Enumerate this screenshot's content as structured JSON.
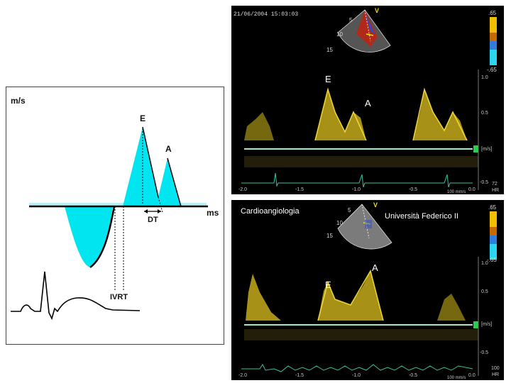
{
  "diagram": {
    "y_unit": "m/s",
    "x_unit": "ms",
    "e_label": "E",
    "a_label": "A",
    "dt_label": "DT",
    "ivrt_label": "IVRT"
  },
  "panel_top": {
    "timestamp": "21/06/2004 15:03:03",
    "e_label": "E",
    "a_label": "A",
    "color_bar": {
      "top": ".65",
      "bottom": "-.65"
    },
    "depth_ticks": [
      "5",
      "10",
      "15"
    ],
    "probe_marker": "V",
    "y_ticks": [
      "1.0",
      "0.5",
      "[m/s]",
      "-0.5"
    ],
    "x_ticks": [
      "-2.0",
      "-1.5",
      "-1.0",
      "-0.5",
      "0.0"
    ],
    "hr_value": "72",
    "hr_label": "HR",
    "sweep_label": "100 mm/s"
  },
  "panel_bottom": {
    "left_caption": "Cardioangiologia",
    "right_caption": "Università Federico II",
    "e_label": "E",
    "a_label": "A",
    "color_bar": {
      "top": ".65",
      "bottom": "-.65"
    },
    "depth_ticks": [
      "5",
      "10",
      "15"
    ],
    "probe_marker": "V",
    "y_ticks": [
      "1.0",
      "0.5",
      "[m/s]",
      "-0.5"
    ],
    "x_ticks": [
      "-2.0",
      "-1.5",
      "-1.0",
      "-0.5",
      "0.0"
    ],
    "hr_value": "100",
    "hr_label": "HR",
    "sweep_label": "100 mm/s"
  }
}
